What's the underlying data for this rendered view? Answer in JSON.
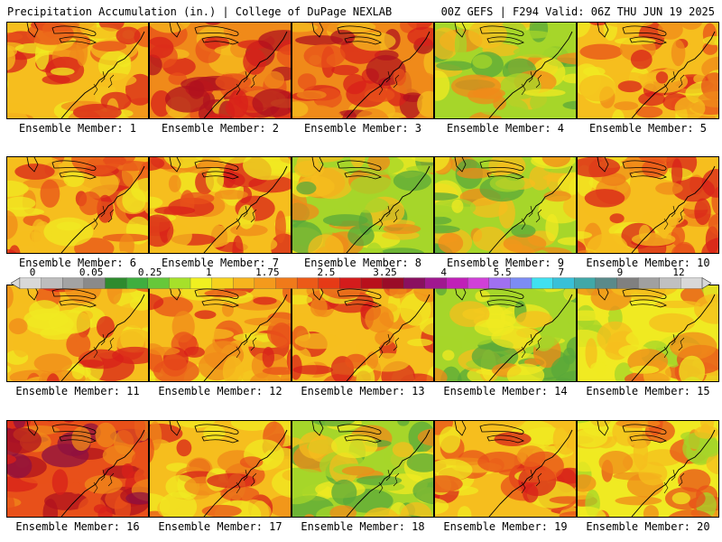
{
  "header": {
    "left": "Precipitation Accumulation (in.) | College of DuPage NEXLAB",
    "right": "00Z GEFS | F294 Valid: 06Z THU JUN 19 2025"
  },
  "members": [
    {
      "label": "Ensemble Member: 1",
      "intensity": 0.55
    },
    {
      "label": "Ensemble Member: 2",
      "intensity": 0.7
    },
    {
      "label": "Ensemble Member: 3",
      "intensity": 0.65
    },
    {
      "label": "Ensemble Member: 4",
      "intensity": 0.3
    },
    {
      "label": "Ensemble Member: 5",
      "intensity": 0.62
    },
    {
      "label": "Ensemble Member: 6",
      "intensity": 0.6
    },
    {
      "label": "Ensemble Member: 7",
      "intensity": 0.52
    },
    {
      "label": "Ensemble Member: 8",
      "intensity": 0.25
    },
    {
      "label": "Ensemble Member: 9",
      "intensity": 0.35
    },
    {
      "label": "Ensemble Member: 10",
      "intensity": 0.62
    },
    {
      "label": "Ensemble Member: 11",
      "intensity": 0.58
    },
    {
      "label": "Ensemble Member: 12",
      "intensity": 0.6
    },
    {
      "label": "Ensemble Member: 13",
      "intensity": 0.62
    },
    {
      "label": "Ensemble Member: 14",
      "intensity": 0.35
    },
    {
      "label": "Ensemble Member: 15",
      "intensity": 0.45
    },
    {
      "label": "Ensemble Member: 16",
      "intensity": 0.85
    },
    {
      "label": "Ensemble Member: 17",
      "intensity": 0.5
    },
    {
      "label": "Ensemble Member: 18",
      "intensity": 0.3
    },
    {
      "label": "Ensemble Member: 19",
      "intensity": 0.55
    },
    {
      "label": "Ensemble Member: 20",
      "intensity": 0.4
    }
  ],
  "colorbar": {
    "tick_labels": [
      "0",
      "0.05",
      "0.25",
      "1",
      "1.75",
      "2.5",
      "3.25",
      "4",
      "5.5",
      "7",
      "9",
      "12"
    ],
    "colors": [
      "#d8d8d8",
      "#bdbdbd",
      "#a3a3a3",
      "#8a8a8a",
      "#2e8b2e",
      "#3fae3f",
      "#66c83a",
      "#a6e02a",
      "#f0f020",
      "#f5d21e",
      "#f6b41e",
      "#f49a1c",
      "#f07a1a",
      "#ec5a18",
      "#e63a16",
      "#d41c1c",
      "#b8101c",
      "#9a0c28",
      "#8a1060",
      "#a01890",
      "#c020b8",
      "#d040d8",
      "#a070f0",
      "#7c8cf4",
      "#40e0f0",
      "#38c0d8",
      "#40a8a8",
      "#5a8a8a",
      "#808080",
      "#a0a0a0",
      "#c0c0c0",
      "#d8d8d8"
    ]
  }
}
